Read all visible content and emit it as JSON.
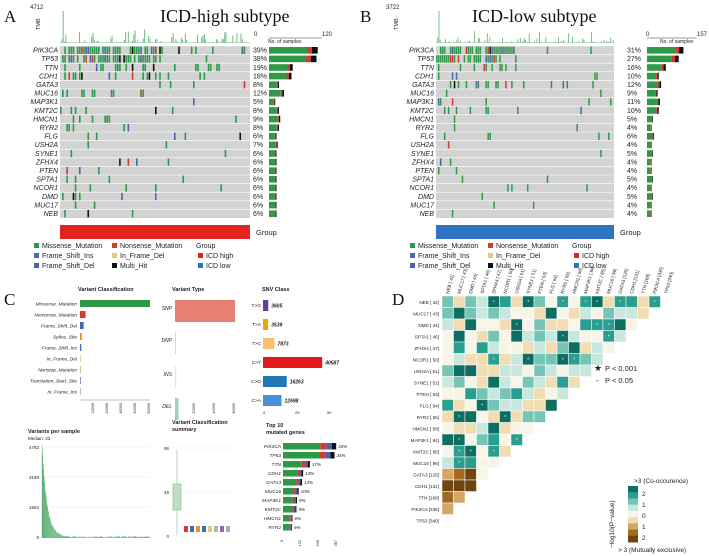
{
  "colors": {
    "missense": "#2e9a47",
    "nonsense": "#d13a2d",
    "frame_shift_ins": "#3a6fb5",
    "in_frame_del": "#e7c783",
    "frame_shift_del": "#4a63a9",
    "multi_hit": "#111111",
    "icd_high": "#e1241d",
    "icd_low": "#2f74c2",
    "grid_bg": "#d3d3d3"
  },
  "panel_a": {
    "letter": "A",
    "title": "ICD-high  subtype",
    "tmb_max": "4712",
    "tmb_label": "TMB",
    "samples_min": "0",
    "samples_max": "120",
    "samples_label": "No. of samples",
    "genes": [
      {
        "name": "PIK3CA",
        "pct": "39%"
      },
      {
        "name": "TP53",
        "pct": "38%"
      },
      {
        "name": "TTN",
        "pct": "19%"
      },
      {
        "name": "CDH1",
        "pct": "18%"
      },
      {
        "name": "GATA3",
        "pct": "8%"
      },
      {
        "name": "MUC16",
        "pct": "12%"
      },
      {
        "name": "MAP3K1",
        "pct": "5%"
      },
      {
        "name": "KMT2C",
        "pct": "8%"
      },
      {
        "name": "HMCN1",
        "pct": "9%"
      },
      {
        "name": "RYR2",
        "pct": "8%"
      },
      {
        "name": "FLG",
        "pct": "6%"
      },
      {
        "name": "USH2A",
        "pct": "7%"
      },
      {
        "name": "SYNE1",
        "pct": "6%"
      },
      {
        "name": "ZFHX4",
        "pct": "6%"
      },
      {
        "name": "PTEN",
        "pct": "6%"
      },
      {
        "name": "SPTA1",
        "pct": "6%"
      },
      {
        "name": "NCOR1",
        "pct": "6%"
      },
      {
        "name": "DMD",
        "pct": "6%"
      },
      {
        "name": "MUC17",
        "pct": "6%"
      },
      {
        "name": "NEB",
        "pct": "6%"
      }
    ],
    "group_label": "Group"
  },
  "panel_b": {
    "letter": "B",
    "title": "ICD-low  subtype",
    "tmb_max": "3722",
    "tmb_label": "TMB",
    "samples_min": "0",
    "samples_max": "157",
    "samples_label": "No. of samples",
    "genes": [
      {
        "name": "PIK3CA",
        "pct": "31%"
      },
      {
        "name": "TP53",
        "pct": "27%"
      },
      {
        "name": "TTN",
        "pct": "16%"
      },
      {
        "name": "CDH1",
        "pct": "10%"
      },
      {
        "name": "GATA3",
        "pct": "12%"
      },
      {
        "name": "MUC16",
        "pct": "9%"
      },
      {
        "name": "MAP3K1",
        "pct": "11%"
      },
      {
        "name": "KMT2C",
        "pct": "10%"
      },
      {
        "name": "HMCN1",
        "pct": "5%"
      },
      {
        "name": "RYR2",
        "pct": "4%"
      },
      {
        "name": "FLG",
        "pct": "6%"
      },
      {
        "name": "USH2A",
        "pct": "4%"
      },
      {
        "name": "SYNE1",
        "pct": "5%"
      },
      {
        "name": "ZFHX4",
        "pct": "4%"
      },
      {
        "name": "PTEN",
        "pct": "4%"
      },
      {
        "name": "SPTA1",
        "pct": "5%"
      },
      {
        "name": "NCOR1",
        "pct": "4%"
      },
      {
        "name": "DMD",
        "pct": "5%"
      },
      {
        "name": "MUC17",
        "pct": "4%"
      },
      {
        "name": "NEB",
        "pct": "4%"
      }
    ],
    "group_label": "Group"
  },
  "legend": {
    "missense": "Missense_Mutation",
    "nonsense": "Nonsense_Mutation",
    "frame_shift_ins": "Frame_Shift_Ins",
    "in_frame_del": "In_Frame_Del",
    "frame_shift_del": "Frame_Shift_Del",
    "multi_hit": "Multi_Hit",
    "group_title": "Group",
    "icd_high": "ICD high",
    "icd_low": "ICD low"
  },
  "panel_c": {
    "letter": "C",
    "variant_classification_title": "Variant Classification",
    "variant_type_title": "Variant Type",
    "snv_class_title": "SNV Class",
    "variants_per_sample_title": "Variants per sample",
    "median_label": "Median: 33",
    "vc_summary_title": "Variant Classification summary",
    "top10_title": "Top 10 mutated genes",
    "vc_items": [
      {
        "name": "Missense_Mutation",
        "value": 50000,
        "color": "#2e9a47"
      },
      {
        "name": "Nonsense_Mutation",
        "value": 4000,
        "color": "#d13a2d"
      },
      {
        "name": "Frame_Shift_Del",
        "value": 2600,
        "color": "#4a63a9"
      },
      {
        "name": "Splice_Site",
        "value": 1300,
        "color": "#f08a3c"
      },
      {
        "name": "Frame_Shift_Ins",
        "value": 900,
        "color": "#3a6fb5"
      },
      {
        "name": "In_Frame_Del",
        "value": 300,
        "color": "#e7c783"
      },
      {
        "name": "Nonstop_Mutation",
        "value": 60,
        "color": "#a3c48f"
      },
      {
        "name": "Translation_Start_Site",
        "value": 50,
        "color": "#8c6bb1"
      },
      {
        "name": "In_Frame_Ins",
        "value": 40,
        "color": "#c59ad1"
      }
    ],
    "vc_ticks": [
      "10000",
      "20000",
      "30000",
      "40000",
      "50000"
    ],
    "vt_items": [
      {
        "name": "SNP",
        "value": 60000,
        "color": "#e87f73"
      },
      {
        "name": "DNP",
        "value": 200,
        "color": "#f2c9a0"
      },
      {
        "name": "INS",
        "value": 1200,
        "color": "#f6e9a8"
      },
      {
        "name": "DEL",
        "value": 3500,
        "color": "#9ed1c3"
      }
    ],
    "vt_ticks": [
      "20000",
      "40000",
      "60000"
    ],
    "snv_items": [
      {
        "name": "T>G",
        "value": "3605",
        "color": "#6a3d9a"
      },
      {
        "name": "T>A",
        "value": "3539",
        "color": "#e6ab02"
      },
      {
        "name": "T>C",
        "value": "7873",
        "color": "#fdbf6f"
      },
      {
        "name": "C>T",
        "value": "40587",
        "color": "#e31a1c"
      },
      {
        "name": "C>G",
        "value": "16263",
        "color": "#1f78b4"
      },
      {
        "name": "C>A",
        "value": "12698",
        "color": "#4a90d9"
      }
    ],
    "snv_ticks": [
      "0",
      "25",
      "50"
    ],
    "vps_ticks": [
      "4782",
      "3188",
      "1594",
      "0"
    ],
    "summary_ticks": [
      "96",
      "48",
      "0"
    ],
    "top10_items": [
      {
        "name": "PIK3CA",
        "pct": "34%",
        "frac": 0.95
      },
      {
        "name": "TP53",
        "pct": "34%",
        "frac": 0.92
      },
      {
        "name": "TTN",
        "pct": "17%",
        "frac": 0.48
      },
      {
        "name": "CDH1",
        "pct": "13%",
        "frac": 0.36
      },
      {
        "name": "GATA3",
        "pct": "13%",
        "frac": 0.34
      },
      {
        "name": "MUC16",
        "pct": "10%",
        "frac": 0.28
      },
      {
        "name": "MAP3K1",
        "pct": "9%",
        "frac": 0.25
      },
      {
        "name": "KMT2C",
        "pct": "9%",
        "frac": 0.24
      },
      {
        "name": "HMCN1",
        "pct": "6%",
        "frac": 0.17
      },
      {
        "name": "RYR2",
        "pct": "6%",
        "frac": 0.16
      }
    ],
    "top10_ticks": [
      "0",
      "122",
      "245",
      "367"
    ]
  },
  "panel_d": {
    "letter": "D",
    "genes": [
      {
        "name": "NEB",
        "n": "[ 42]"
      },
      {
        "name": "MUC17",
        "n": "[ 43]"
      },
      {
        "name": "DMD",
        "n": "[ 44]"
      },
      {
        "name": "SPTA1",
        "n": "[ 46]"
      },
      {
        "name": "ZFHX4",
        "n": "[ 47]"
      },
      {
        "name": "NCOR1",
        "n": "[ 50]"
      },
      {
        "name": "USH2A",
        "n": "[ 51]"
      },
      {
        "name": "SYNE1",
        "n": "[ 51]"
      },
      {
        "name": "PTEN",
        "n": "[ 53]"
      },
      {
        "name": "FLG",
        "n": "[ 54]"
      },
      {
        "name": "RYR2",
        "n": "[ 55]"
      },
      {
        "name": "HMCN1",
        "n": "[ 58]"
      },
      {
        "name": "MAP3K1",
        "n": "[ 84]"
      },
      {
        "name": "KMT2C",
        "n": "[ 85]"
      },
      {
        "name": "MUC16",
        "n": "[ 96]"
      },
      {
        "name": "GATA3",
        "n": "[125]"
      },
      {
        "name": "CDH1",
        "n": "[131]"
      },
      {
        "name": "TTN",
        "n": "[168]"
      },
      {
        "name": "PIK3CA",
        "n": "[335]"
      },
      {
        "name": "TP53",
        "n": "[340]"
      }
    ],
    "sig_strong": "P < 0.001",
    "sig_weak": "P < 0.05",
    "scale_top": ">3 (Co-occurence)",
    "scale_ticks": [
      "2",
      "1",
      "0",
      "1",
      "2"
    ],
    "scale_bottom": "> 3 (Mutually exclusive)",
    "scale_title": "−log10(P−value)"
  }
}
